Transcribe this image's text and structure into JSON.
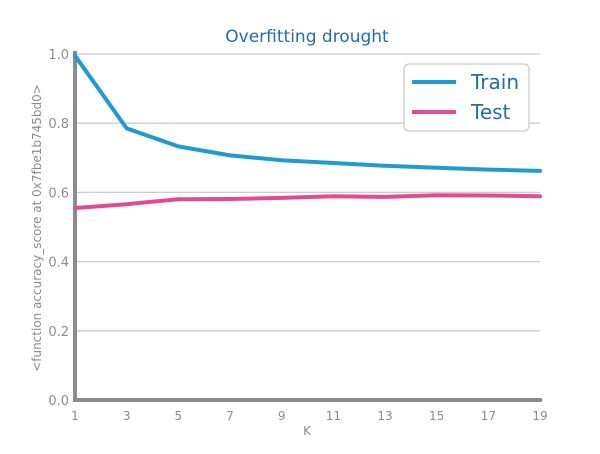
{
  "chart_data": {
    "type": "line",
    "title": "Overfitting drought",
    "xlabel": "K",
    "ylabel": "<function accuracy_score at 0x7fbe1b745bd0>",
    "x": [
      1,
      3,
      5,
      7,
      9,
      11,
      13,
      15,
      17,
      19
    ],
    "x_ticks": [
      "1",
      "3",
      "5",
      "7",
      "9",
      "11",
      "13",
      "15",
      "17",
      "19"
    ],
    "y_ticks": [
      "0.0",
      "0.2",
      "0.4",
      "0.6",
      "0.8",
      "1.0"
    ],
    "xlim": [
      1,
      19
    ],
    "ylim": [
      0,
      1
    ],
    "grid": "horizontal",
    "legend_position": "top-right",
    "series": [
      {
        "name": "Train",
        "color": "#1f9bd1",
        "values": [
          0.995,
          0.785,
          0.733,
          0.707,
          0.693,
          0.685,
          0.677,
          0.671,
          0.666,
          0.662
        ]
      },
      {
        "name": "Test",
        "color": "#e44a93",
        "values": [
          0.555,
          0.566,
          0.58,
          0.581,
          0.584,
          0.589,
          0.587,
          0.592,
          0.591,
          0.589
        ]
      }
    ],
    "colors": {
      "title": "#1f6fa8",
      "axis": "#8c8c8c",
      "grid": "#cccccc",
      "tick_label": "#8c8c8c",
      "legend_text": "#1f6fa8"
    }
  }
}
